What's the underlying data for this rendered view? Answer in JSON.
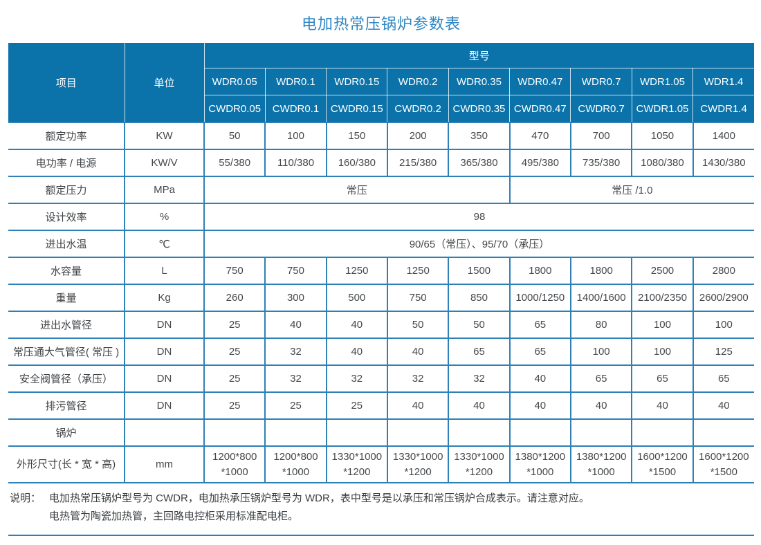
{
  "title": "电加热常压锅炉参数表",
  "table": {
    "header": {
      "item_label": "项目",
      "unit_label": "单位",
      "model_label": "型号",
      "models_wdr": [
        "WDR0.05",
        "WDR0.1",
        "WDR0.15",
        "WDR0.2",
        "WDR0.35",
        "WDR0.47",
        "WDR0.7",
        "WDR1.05",
        "WDR1.4"
      ],
      "models_cwdr": [
        "CWDR0.05",
        "CWDR0.1",
        "CWDR0.15",
        "CWDR0.2",
        "CWDR0.35",
        "CWDR0.47",
        "CWDR0.7",
        "CWDR1.05",
        "CWDR1.4"
      ]
    },
    "rows": [
      {
        "label": "额定功率",
        "unit": "KW",
        "cells": [
          {
            "text": "50"
          },
          {
            "text": "100"
          },
          {
            "text": "150"
          },
          {
            "text": "200"
          },
          {
            "text": "350"
          },
          {
            "text": "470"
          },
          {
            "text": "700"
          },
          {
            "text": "1050"
          },
          {
            "text": "1400"
          }
        ]
      },
      {
        "label": "电功率 / 电源",
        "unit": "KW/V",
        "cells": [
          {
            "text": "55/380"
          },
          {
            "text": "110/380"
          },
          {
            "text": "160/380"
          },
          {
            "text": "215/380"
          },
          {
            "text": "365/380"
          },
          {
            "text": "495/380"
          },
          {
            "text": "735/380"
          },
          {
            "text": "1080/380"
          },
          {
            "text": "1430/380"
          }
        ]
      },
      {
        "label": "额定压力",
        "unit": "MPa",
        "cells": [
          {
            "text": "常压",
            "span": 5
          },
          {
            "text": "常压 /1.0",
            "span": 4
          }
        ]
      },
      {
        "label": "设计效率",
        "unit": "%",
        "cells": [
          {
            "text": "98",
            "span": 9
          }
        ]
      },
      {
        "label": "进出水温",
        "unit": "℃",
        "cells": [
          {
            "text": "90/65（常压）、95/70（承压）",
            "span": 9
          }
        ]
      },
      {
        "label": "水容量",
        "unit": "L",
        "cells": [
          {
            "text": "750"
          },
          {
            "text": "750"
          },
          {
            "text": "1250"
          },
          {
            "text": "1250"
          },
          {
            "text": "1500"
          },
          {
            "text": "1800"
          },
          {
            "text": "1800"
          },
          {
            "text": "2500"
          },
          {
            "text": "2800"
          }
        ]
      },
      {
        "label": "重量",
        "unit": "Kg",
        "cells": [
          {
            "text": "260"
          },
          {
            "text": "300"
          },
          {
            "text": "500"
          },
          {
            "text": "750"
          },
          {
            "text": "850"
          },
          {
            "text": "1000/1250"
          },
          {
            "text": "1400/1600"
          },
          {
            "text": "2100/2350"
          },
          {
            "text": "2600/2900"
          }
        ]
      },
      {
        "label": "进出水管径",
        "unit": "DN",
        "cells": [
          {
            "text": "25"
          },
          {
            "text": "40"
          },
          {
            "text": "40"
          },
          {
            "text": "50"
          },
          {
            "text": "50"
          },
          {
            "text": "65"
          },
          {
            "text": "80"
          },
          {
            "text": "100"
          },
          {
            "text": "100"
          }
        ]
      },
      {
        "label": "常压通大气管径( 常压 )",
        "unit": "DN",
        "cells": [
          {
            "text": "25"
          },
          {
            "text": "32"
          },
          {
            "text": "40"
          },
          {
            "text": "40"
          },
          {
            "text": "65"
          },
          {
            "text": "65"
          },
          {
            "text": "100"
          },
          {
            "text": "100"
          },
          {
            "text": "125"
          }
        ]
      },
      {
        "label": "安全阀管径（承压）",
        "unit": "DN",
        "cells": [
          {
            "text": "25"
          },
          {
            "text": "32"
          },
          {
            "text": "32"
          },
          {
            "text": "32"
          },
          {
            "text": "32"
          },
          {
            "text": "40"
          },
          {
            "text": "65"
          },
          {
            "text": "65"
          },
          {
            "text": "65"
          }
        ]
      },
      {
        "label": "排污管径",
        "unit": "DN",
        "cells": [
          {
            "text": "25"
          },
          {
            "text": "25"
          },
          {
            "text": "25"
          },
          {
            "text": "40"
          },
          {
            "text": "40"
          },
          {
            "text": "40"
          },
          {
            "text": "40"
          },
          {
            "text": "40"
          },
          {
            "text": "40"
          }
        ]
      },
      {
        "label": "锅炉",
        "unit": "",
        "cells": [
          {
            "text": ""
          },
          {
            "text": ""
          },
          {
            "text": ""
          },
          {
            "text": ""
          },
          {
            "text": ""
          },
          {
            "text": ""
          },
          {
            "text": ""
          },
          {
            "text": ""
          },
          {
            "text": ""
          }
        ]
      },
      {
        "label": "外形尺寸(长 * 宽 * 高)",
        "unit": "mm",
        "dim": true,
        "cells": [
          {
            "text": "1200*800\n*1000"
          },
          {
            "text": "1200*800\n*1000"
          },
          {
            "text": "1330*1000\n*1200"
          },
          {
            "text": "1330*1000\n*1200"
          },
          {
            "text": "1330*1000\n*1200"
          },
          {
            "text": "1380*1200\n*1000"
          },
          {
            "text": "1380*1200\n*1000"
          },
          {
            "text": "1600*1200\n*1500"
          },
          {
            "text": "1600*1200\n*1500"
          }
        ]
      }
    ]
  },
  "note": {
    "prefix": "说明：",
    "line1": "电加热常压锅炉型号为 CWDR，电加热承压锅炉型号为 WDR，表中型号是以承压和常压锅炉合成表示。请注意对应。",
    "line2": "电热管为陶瓷加热管，主回路电控柜采用标准配电柜。"
  },
  "colors": {
    "header_bg": "#0b73a9",
    "grid_line": "#2e80b7",
    "title_text": "#2e86c4",
    "header_text": "#ffffff",
    "body_text": "#45484b"
  }
}
